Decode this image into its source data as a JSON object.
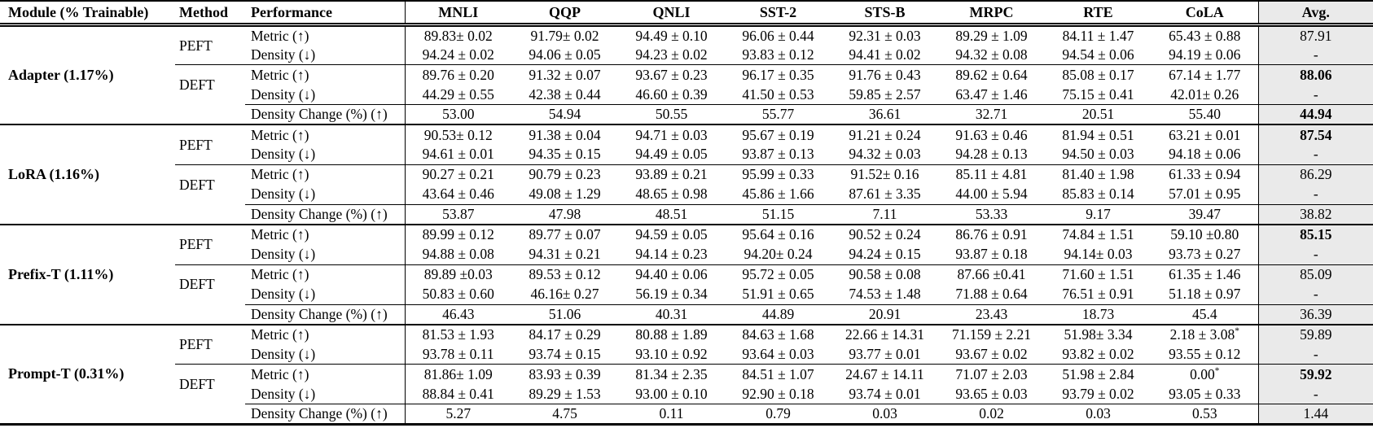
{
  "table": {
    "header": {
      "module": "Module (% Trainable)",
      "method": "Method",
      "performance": "Performance",
      "tasks": [
        "MNLI",
        "QQP",
        "QNLI",
        "SST-2",
        "STS-B",
        "MRPC",
        "RTE",
        "CoLA"
      ],
      "avg": "Avg."
    },
    "row_labels": {
      "peft": "PEFT",
      "deft": "DEFT",
      "metric": "Metric (↑)",
      "density": "Density (↓)",
      "density_change": "Density Change (%) (↑)"
    },
    "colors": {
      "avg_col_bg": "#eaeaea",
      "border": "#000000"
    },
    "modules": [
      {
        "name": "Adapter (1.17%)",
        "peft_metric": {
          "values": [
            "89.83± 0.02",
            "91.79± 0.02",
            "94.49 ± 0.10",
            "96.06 ± 0.44",
            "92.31 ± 0.03",
            "89.29 ± 1.09",
            "84.11 ± 1.47",
            "65.43 ± 0.88"
          ],
          "avg": "87.91",
          "avg_bold": false
        },
        "peft_density": {
          "values": [
            "94.24 ± 0.02",
            "94.06 ± 0.05",
            "94.23 ± 0.02",
            "93.83 ± 0.12",
            "94.41 ± 0.02",
            "94.32 ± 0.08",
            "94.54 ± 0.06",
            "94.19 ± 0.06"
          ],
          "avg": "-",
          "avg_bold": false
        },
        "deft_metric": {
          "values": [
            "89.76 ± 0.20",
            "91.32 ± 0.07",
            "93.67 ± 0.23",
            "96.17 ± 0.35",
            "91.76 ± 0.43",
            "89.62 ± 0.64",
            "85.08 ± 0.17",
            "67.14 ± 1.77"
          ],
          "avg": "88.06",
          "avg_bold": true
        },
        "deft_density": {
          "values": [
            "44.29 ± 0.55",
            "42.38 ± 0.44",
            "46.60 ± 0.39",
            "41.50 ± 0.53",
            "59.85 ± 2.57",
            "63.47 ± 1.46",
            "75.15 ± 0.41",
            "42.01± 0.26"
          ],
          "avg": "-",
          "avg_bold": false
        },
        "density_change": {
          "values": [
            "53.00",
            "54.94",
            "50.55",
            "55.77",
            "36.61",
            "32.71",
            "20.51",
            "55.40"
          ],
          "avg": "44.94",
          "avg_bold": true
        }
      },
      {
        "name": "LoRA (1.16%)",
        "peft_metric": {
          "values": [
            "90.53± 0.12",
            "91.38 ± 0.04",
            "94.71 ± 0.03",
            "95.67 ± 0.19",
            "91.21 ± 0.24",
            "91.63 ± 0.46",
            "81.94 ± 0.51",
            "63.21 ± 0.01"
          ],
          "avg": "87.54",
          "avg_bold": true
        },
        "peft_density": {
          "values": [
            "94.61 ± 0.01",
            "94.35 ± 0.15",
            "94.49 ± 0.05",
            "93.87 ± 0.13",
            "94.32 ± 0.03",
            "94.28 ± 0.13",
            "94.50 ± 0.03",
            "94.18 ± 0.06"
          ],
          "avg": "-",
          "avg_bold": false
        },
        "deft_metric": {
          "values": [
            "90.27 ± 0.21",
            "90.79 ± 0.23",
            "93.89 ± 0.21",
            "95.99 ± 0.33",
            "91.52± 0.16",
            "85.11 ± 4.81",
            "81.40 ± 1.98",
            "61.33 ± 0.94"
          ],
          "avg": "86.29",
          "avg_bold": false
        },
        "deft_density": {
          "values": [
            "43.64 ± 0.46",
            "49.08 ± 1.29",
            "48.65 ± 0.98",
            "45.86 ± 1.66",
            "87.61 ± 3.35",
            "44.00 ± 5.94",
            "85.83 ± 0.14",
            "57.01 ± 0.95"
          ],
          "avg": "-",
          "avg_bold": false
        },
        "density_change": {
          "values": [
            "53.87",
            "47.98",
            "48.51",
            "51.15",
            "7.11",
            "53.33",
            "9.17",
            "39.47"
          ],
          "avg": "38.82",
          "avg_bold": false
        }
      },
      {
        "name": "Prefix-T (1.11%)",
        "peft_metric": {
          "values": [
            "89.99 ± 0.12",
            "89.77 ± 0.07",
            "94.59 ± 0.05",
            "95.64 ± 0.16",
            "90.52 ± 0.24",
            "86.76 ± 0.91",
            "74.84 ± 1.51",
            "59.10 ±0.80"
          ],
          "avg": "85.15",
          "avg_bold": true
        },
        "peft_density": {
          "values": [
            "94.88 ± 0.08",
            "94.31 ± 0.21",
            "94.14 ± 0.23",
            "94.20± 0.24",
            "94.24 ± 0.15",
            "93.87 ± 0.18",
            "94.14± 0.03",
            "93.73 ± 0.27"
          ],
          "avg": "-",
          "avg_bold": false
        },
        "deft_metric": {
          "values": [
            "89.89 ±0.03",
            "89.53 ± 0.12",
            "94.40 ± 0.06",
            "95.72 ± 0.05",
            "90.58 ± 0.08",
            "87.66 ±0.41",
            "71.60 ± 1.51",
            "61.35 ± 1.46"
          ],
          "avg": "85.09",
          "avg_bold": false
        },
        "deft_density": {
          "values": [
            "50.83 ± 0.60",
            "46.16± 0.27",
            "56.19 ± 0.34",
            "51.91 ± 0.65",
            "74.53 ± 1.48",
            "71.88 ± 0.64",
            "76.51 ± 0.91",
            "51.18 ± 0.97"
          ],
          "avg": "-",
          "avg_bold": false
        },
        "density_change": {
          "values": [
            "46.43",
            "51.06",
            "40.31",
            "44.89",
            "20.91",
            "23.43",
            "18.73",
            "45.4"
          ],
          "avg": "36.39",
          "avg_bold": false
        }
      },
      {
        "name": "Prompt-T (0.31%)",
        "peft_metric": {
          "values": [
            "81.53 ± 1.93",
            "84.17 ± 0.29",
            "80.88 ± 1.89",
            "84.63 ± 1.68",
            "22.66 ± 14.31",
            "71.159 ± 2.21",
            "51.98± 3.34",
            "2.18 ± 3.08*"
          ],
          "avg": "59.89",
          "avg_bold": false
        },
        "peft_density": {
          "values": [
            "93.78 ± 0.11",
            "93.74 ± 0.15",
            "93.10 ± 0.92",
            "93.64 ± 0.03",
            "93.77 ± 0.01",
            "93.67 ± 0.02",
            "93.82 ± 0.02",
            "93.55 ± 0.12"
          ],
          "avg": "-",
          "avg_bold": false
        },
        "deft_metric": {
          "values": [
            "81.86± 1.09",
            "83.93 ± 0.39",
            "81.34 ± 2.35",
            "84.51 ± 1.07",
            "24.67 ± 14.11",
            "71.07 ± 2.03",
            "51.98 ± 2.84",
            "0.00*"
          ],
          "avg": "59.92",
          "avg_bold": true
        },
        "deft_density": {
          "values": [
            "88.84 ± 0.41",
            "89.29 ± 1.53",
            "93.00 ± 0.10",
            "92.90 ± 0.18",
            "93.74 ± 0.01",
            "93.65 ± 0.03",
            "93.79 ± 0.02",
            "93.05 ± 0.33"
          ],
          "avg": "-",
          "avg_bold": false
        },
        "density_change": {
          "values": [
            "5.27",
            "4.75",
            "0.11",
            "0.79",
            "0.03",
            "0.02",
            "0.03",
            "0.53"
          ],
          "avg": "1.44",
          "avg_bold": false
        }
      }
    ]
  }
}
